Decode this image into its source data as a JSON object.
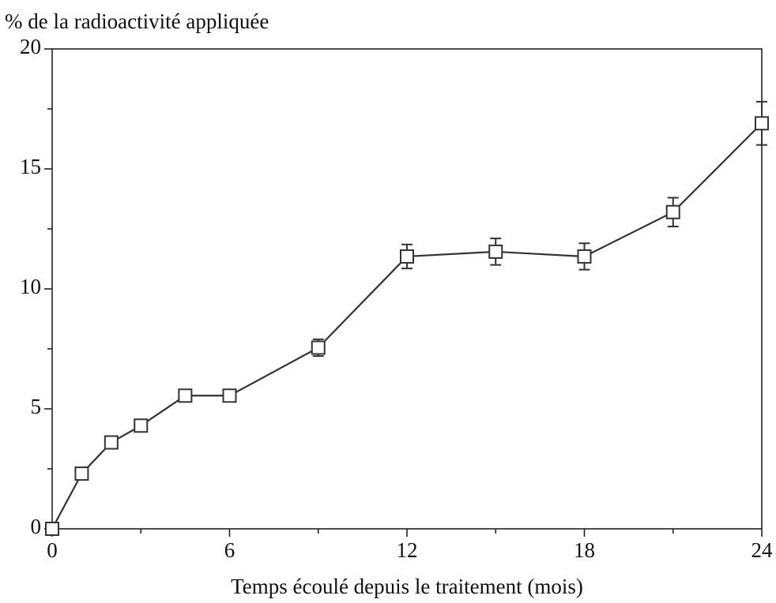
{
  "chart_data": {
    "type": "line",
    "title": "% de la radioactivité appliquée",
    "x_label": "Temps écoulé depuis le traitement (mois)",
    "x": [
      0,
      1,
      2,
      3,
      4.5,
      6,
      9,
      12,
      15,
      18,
      21,
      24
    ],
    "series": [
      {
        "color": "#333333",
        "values": [
          0,
          2.3,
          3.6,
          4.3,
          5.55,
          5.55,
          7.55,
          11.35,
          11.55,
          11.35,
          13.2,
          16.9
        ],
        "errors": [
          0.1,
          0.1,
          0.1,
          0.1,
          0.1,
          0.1,
          0.35,
          0.5,
          0.55,
          0.55,
          0.6,
          0.9
        ]
      }
    ],
    "xlim": [
      0,
      24
    ],
    "xticks": [
      0,
      6,
      12,
      18,
      24
    ],
    "xminorticks": [
      3,
      9,
      15,
      21
    ],
    "ylim": [
      0,
      20
    ],
    "yticks": [
      0,
      5,
      10,
      15,
      20
    ],
    "yminorticks": [
      2.5,
      7.5,
      12.5,
      17.5
    ],
    "grid": false
  }
}
